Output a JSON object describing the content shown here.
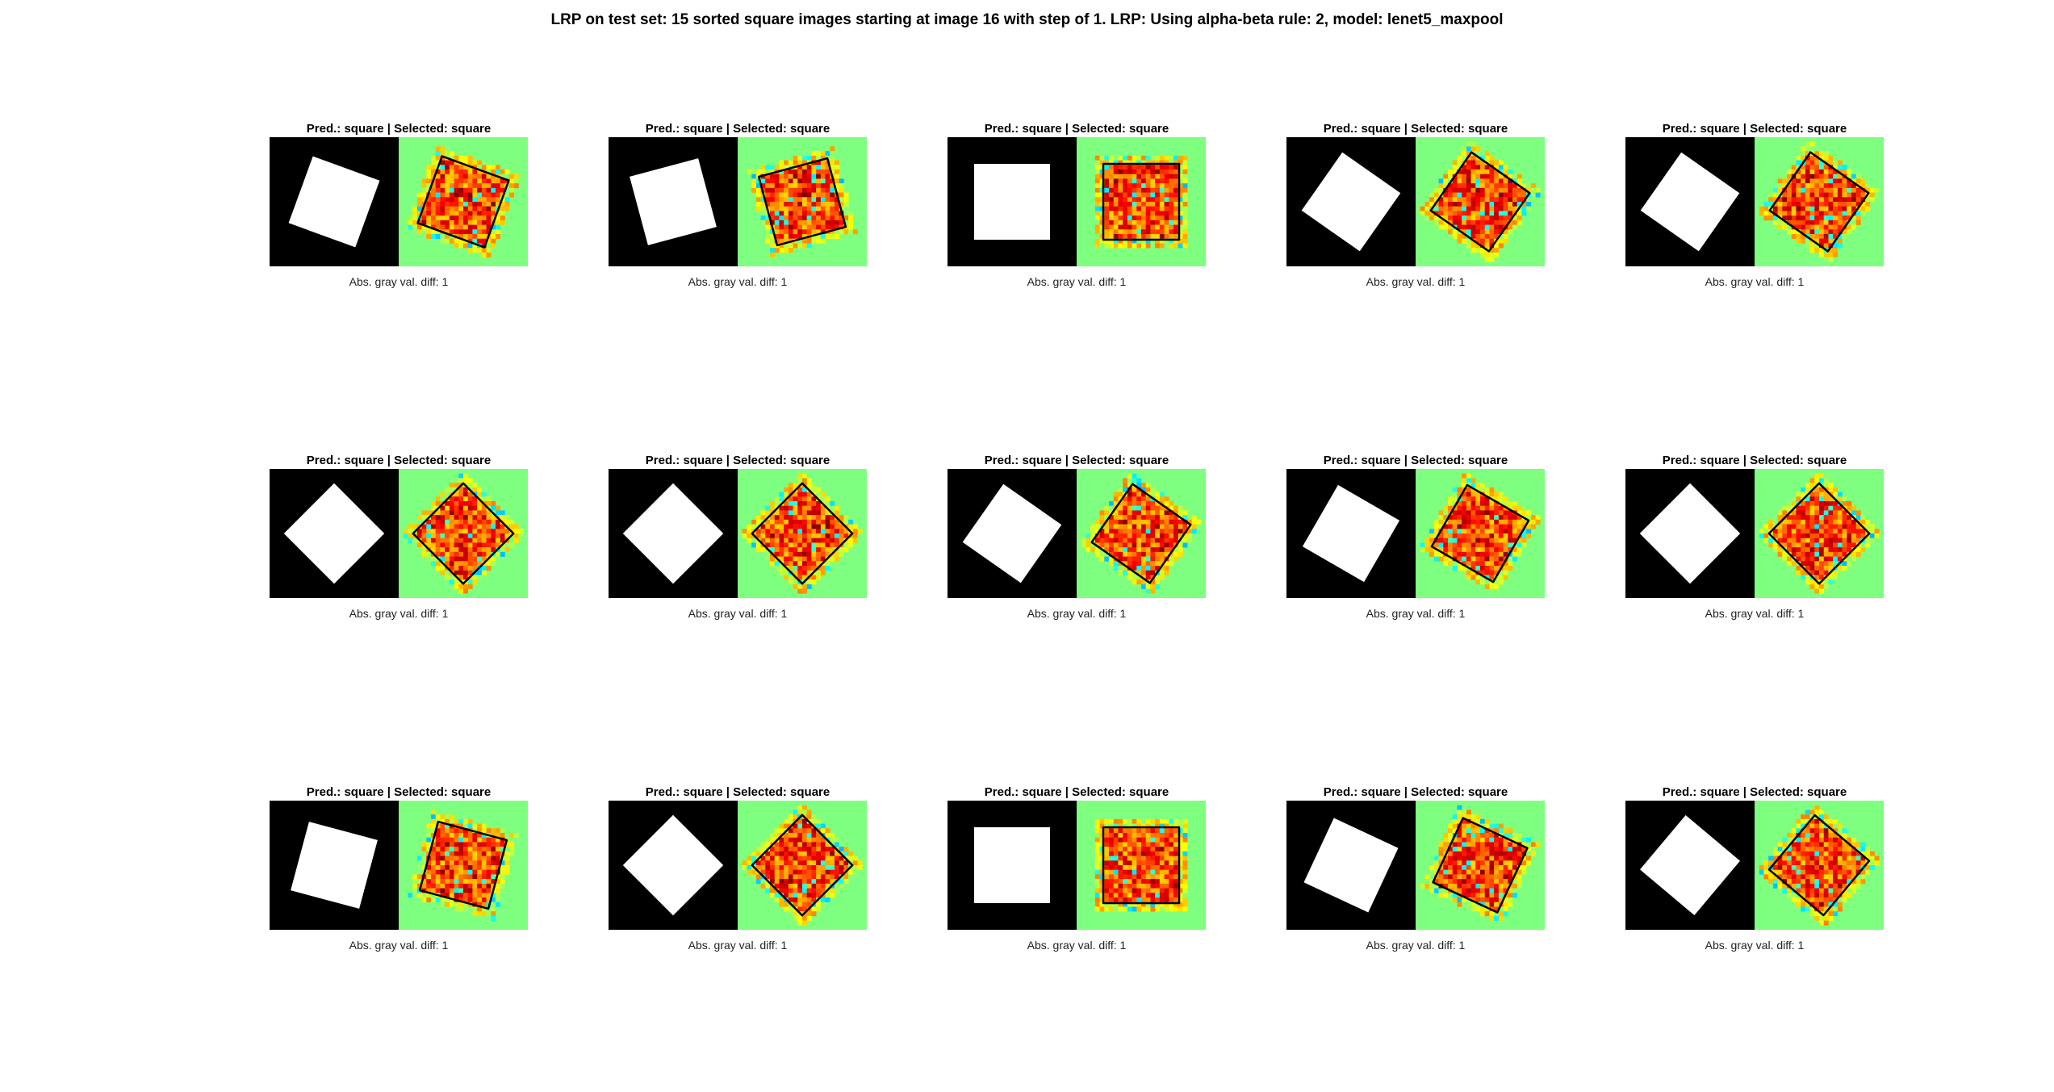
{
  "title": "LRP on test set: 15 sorted square images starting at image 16 with step of 1. LRP: Using alpha-beta rule: 2, model: lenet5_maxpool",
  "colors": {
    "background": "#ffffff",
    "input_bg": "#000000",
    "input_shape": "#ffffff",
    "heatmap_bg": "#7fff7f",
    "outline": "#000000"
  },
  "panels": [
    {
      "title": "Pred.: square | Selected: square",
      "caption": "Abs. gray val. diff: 1",
      "shape_rotation_deg": 20
    },
    {
      "title": "Pred.: square | Selected: square",
      "caption": "Abs. gray val. diff: 1",
      "shape_rotation_deg": -15
    },
    {
      "title": "Pred.: square | Selected: square",
      "caption": "Abs. gray val. diff: 1",
      "shape_rotation_deg": 0
    },
    {
      "title": "Pred.: square | Selected: square",
      "caption": "Abs. gray val. diff: 1",
      "shape_rotation_deg": 35
    },
    {
      "title": "Pred.: square | Selected: square",
      "caption": "Abs. gray val. diff: 1",
      "shape_rotation_deg": 35
    },
    {
      "title": "Pred.: square | Selected: square",
      "caption": "Abs. gray val. diff: 1",
      "shape_rotation_deg": 45
    },
    {
      "title": "Pred.: square | Selected: square",
      "caption": "Abs. gray val. diff: 1",
      "shape_rotation_deg": 45
    },
    {
      "title": "Pred.: square | Selected: square",
      "caption": "Abs. gray val. diff: 1",
      "shape_rotation_deg": 35
    },
    {
      "title": "Pred.: square | Selected: square",
      "caption": "Abs. gray val. diff: 1",
      "shape_rotation_deg": 30
    },
    {
      "title": "Pred.: square | Selected: square",
      "caption": "Abs. gray val. diff: 1",
      "shape_rotation_deg": 45
    },
    {
      "title": "Pred.: square | Selected: square",
      "caption": "Abs. gray val. diff: 1",
      "shape_rotation_deg": 15
    },
    {
      "title": "Pred.: square | Selected: square",
      "caption": "Abs. gray val. diff: 1",
      "shape_rotation_deg": 45
    },
    {
      "title": "Pred.: square | Selected: square",
      "caption": "Abs. gray val. diff: 1",
      "shape_rotation_deg": 0
    },
    {
      "title": "Pred.: square | Selected: square",
      "caption": "Abs. gray val. diff: 1",
      "shape_rotation_deg": 25
    },
    {
      "title": "Pred.: square | Selected: square",
      "caption": "Abs. gray val. diff: 1",
      "shape_rotation_deg": 40
    }
  ]
}
